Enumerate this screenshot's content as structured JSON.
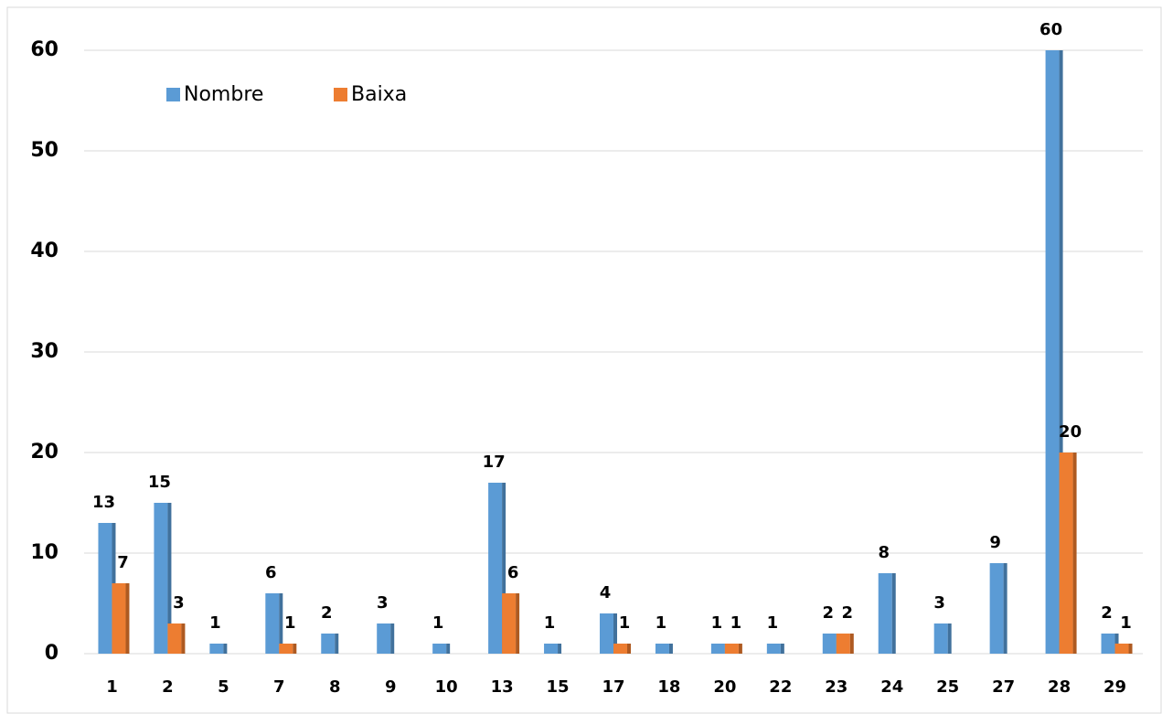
{
  "chart_data": {
    "type": "bar",
    "categories": [
      "1",
      "2",
      "5",
      "7",
      "8",
      "9",
      "10",
      "13",
      "15",
      "17",
      "18",
      "20",
      "22",
      "23",
      "24",
      "25",
      "27",
      "28",
      "29"
    ],
    "series": [
      {
        "name": "Nombre",
        "color": "#5b9bd5",
        "values": [
          13,
          15,
          1,
          6,
          2,
          3,
          1,
          17,
          1,
          4,
          1,
          1,
          1,
          2,
          8,
          3,
          9,
          60,
          2
        ]
      },
      {
        "name": "Baixa",
        "color": "#ed7d31",
        "values": [
          7,
          3,
          null,
          1,
          null,
          null,
          null,
          6,
          null,
          1,
          null,
          1,
          null,
          2,
          null,
          null,
          null,
          20,
          1
        ]
      }
    ],
    "ylim": [
      0,
      60
    ],
    "yticks": [
      0,
      10,
      20,
      30,
      40,
      50,
      60
    ],
    "grid": true,
    "legend": "top-left"
  }
}
